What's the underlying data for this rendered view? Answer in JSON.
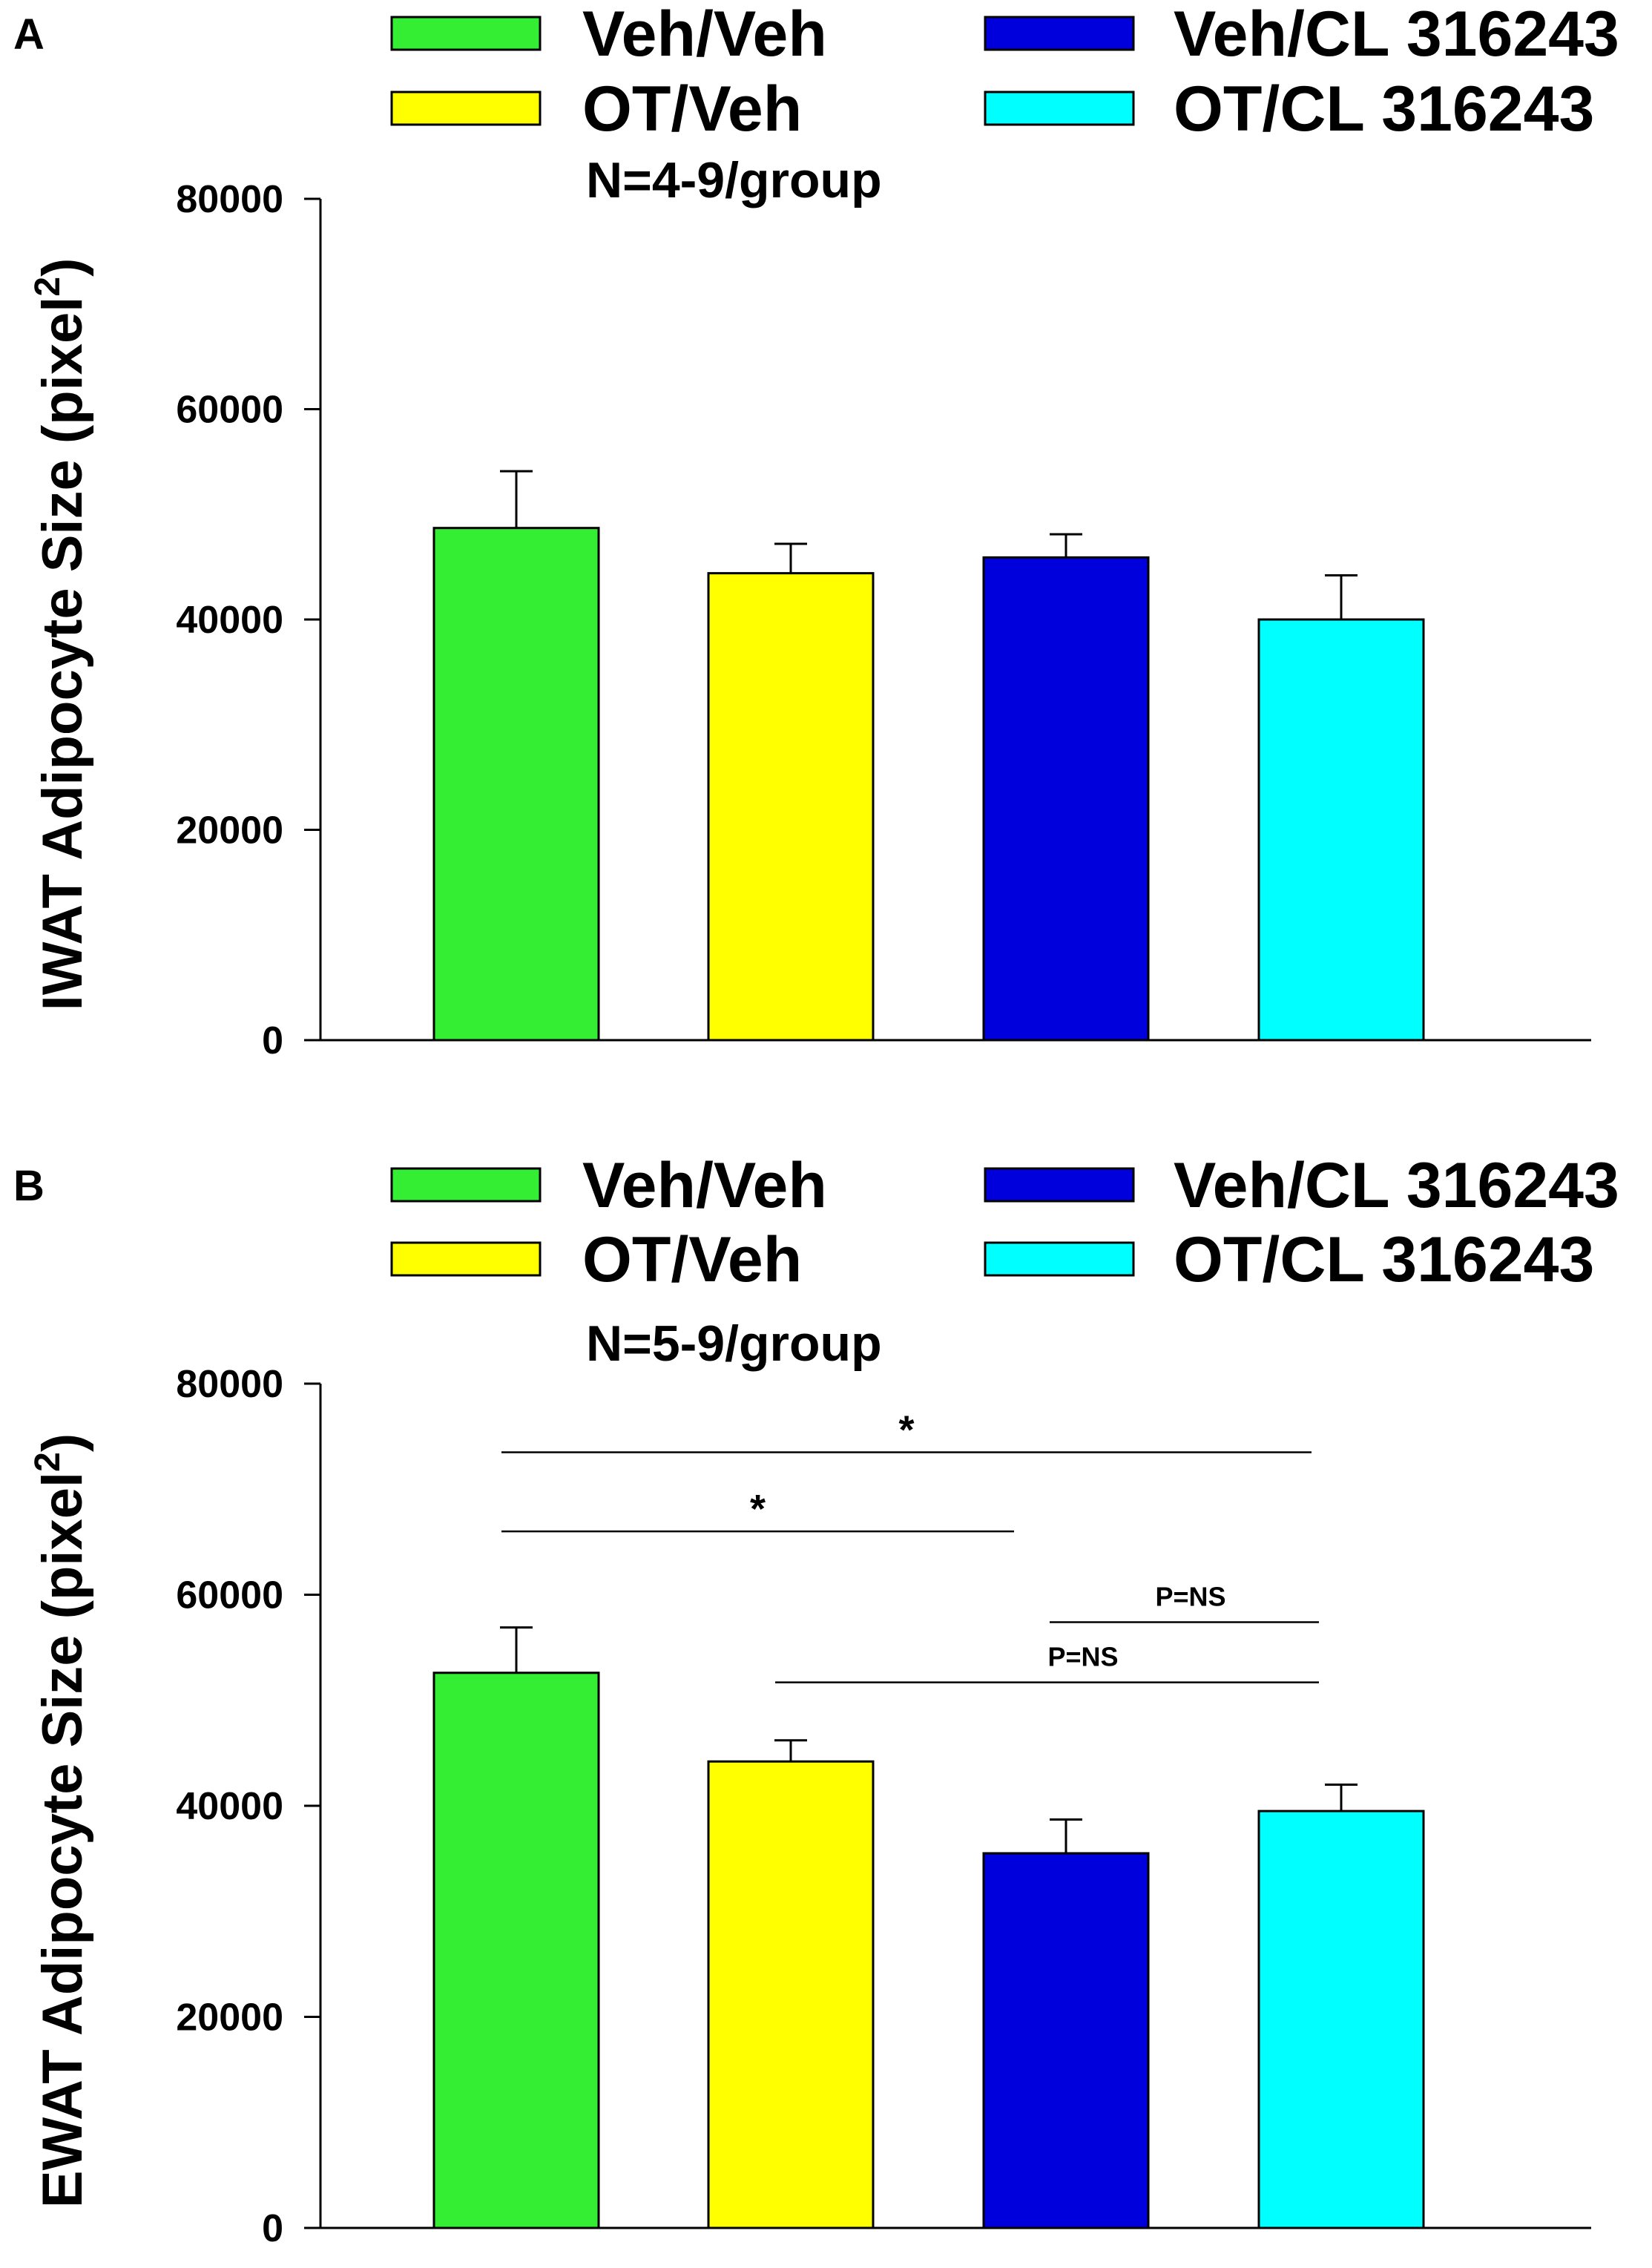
{
  "legend": [
    {
      "label": "Veh/Veh",
      "color": "#33ee33"
    },
    {
      "label": "OT/Veh",
      "color": "#ffff00"
    },
    {
      "label": "Veh/CL 316243",
      "color": "#0000dd"
    },
    {
      "label": "OT/CL 316243",
      "color": "#00ffff"
    }
  ],
  "chart_data": [
    {
      "panel": "A",
      "type": "bar",
      "categories": [
        "Veh/Veh",
        "OT/Veh",
        "Veh/CL 316243",
        "OT/CL 316243"
      ],
      "values": [
        48700,
        44400,
        45900,
        40000
      ],
      "errors": [
        5400,
        2800,
        2200,
        4200
      ],
      "ylabel_main": "IWAT Adipocyte Size (pixel",
      "ylabel_sup": "2",
      "ylabel_end": ")",
      "annotation": "N=4-9/group",
      "ylim": [
        0,
        80000
      ],
      "yticks": [
        0,
        20000,
        40000,
        60000,
        80000
      ],
      "ytick_labels": [
        "0",
        "20000",
        "40000",
        "60000",
        "80000"
      ],
      "significance": []
    },
    {
      "panel": "B",
      "type": "bar",
      "categories": [
        "Veh/Veh",
        "OT/Veh",
        "Veh/CL 316243",
        "OT/CL 316243"
      ],
      "values": [
        52600,
        44200,
        35500,
        39500
      ],
      "errors": [
        4300,
        2000,
        3200,
        2500
      ],
      "ylabel_main": "EWAT Adipocyte Size (pixel",
      "ylabel_sup": "2",
      "ylabel_end": ")",
      "annotation": "N=5-9/group",
      "ylim": [
        0,
        80000
      ],
      "yticks": [
        0,
        20000,
        40000,
        60000,
        80000
      ],
      "ytick_labels": [
        "0",
        "20000",
        "40000",
        "60000",
        "80000"
      ],
      "significance": [
        {
          "from": 0,
          "to": 3,
          "label": "*",
          "level": 73500
        },
        {
          "from": 0,
          "to": 2,
          "label": "*",
          "level": 66000
        },
        {
          "from": 2,
          "to": 3,
          "label": "P=NS",
          "level": 57400
        },
        {
          "from": 1,
          "to": 3,
          "label": "P=NS",
          "level": 51700
        }
      ]
    }
  ]
}
